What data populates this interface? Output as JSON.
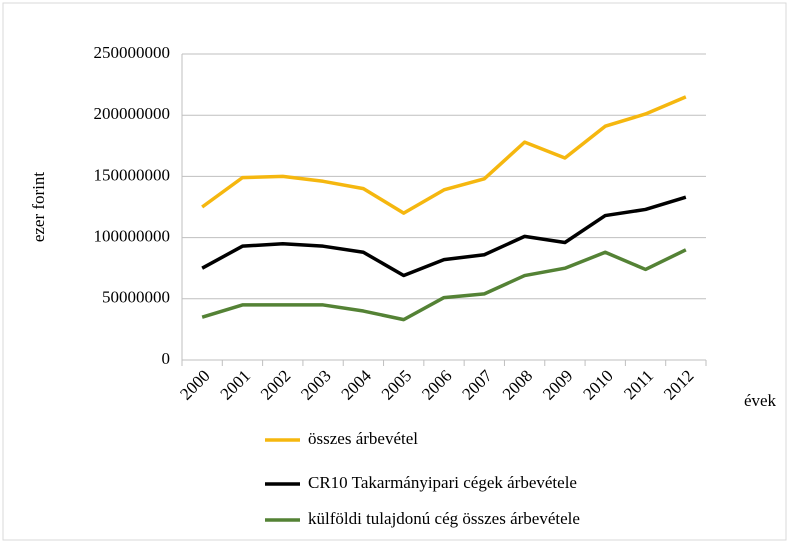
{
  "chart_data": {
    "type": "line",
    "y_label": "ezer forint",
    "x_label": "évek",
    "categories": [
      "2000",
      "2001",
      "2002",
      "2003",
      "2004",
      "2005",
      "2006",
      "2007",
      "2008",
      "2009",
      "2010",
      "2011",
      "2012"
    ],
    "series": [
      {
        "name": "összes árbevétel",
        "color": "#f5b70f",
        "values": [
          125000000,
          149000000,
          150000000,
          146000000,
          140000000,
          120000000,
          139000000,
          148000000,
          178000000,
          165000000,
          191000000,
          201000000,
          215000000
        ]
      },
      {
        "name": "CR10 Takarmányipari cégek árbevétele",
        "color": "#000000",
        "values": [
          75000000,
          93000000,
          95000000,
          93000000,
          88000000,
          69000000,
          82000000,
          86000000,
          101000000,
          96000000,
          118000000,
          123000000,
          133000000
        ]
      },
      {
        "name": "külföldi tulajdonú cég összes árbevétele",
        "color": "#548235",
        "values": [
          35000000,
          45000000,
          45000000,
          45000000,
          40000000,
          33000000,
          51000000,
          54000000,
          69000000,
          75000000,
          88000000,
          74000000,
          90000000
        ]
      }
    ],
    "ylim": [
      0,
      250000000
    ],
    "yticks": [
      0,
      50000000,
      100000000,
      150000000,
      200000000,
      250000000
    ],
    "grid": true
  }
}
